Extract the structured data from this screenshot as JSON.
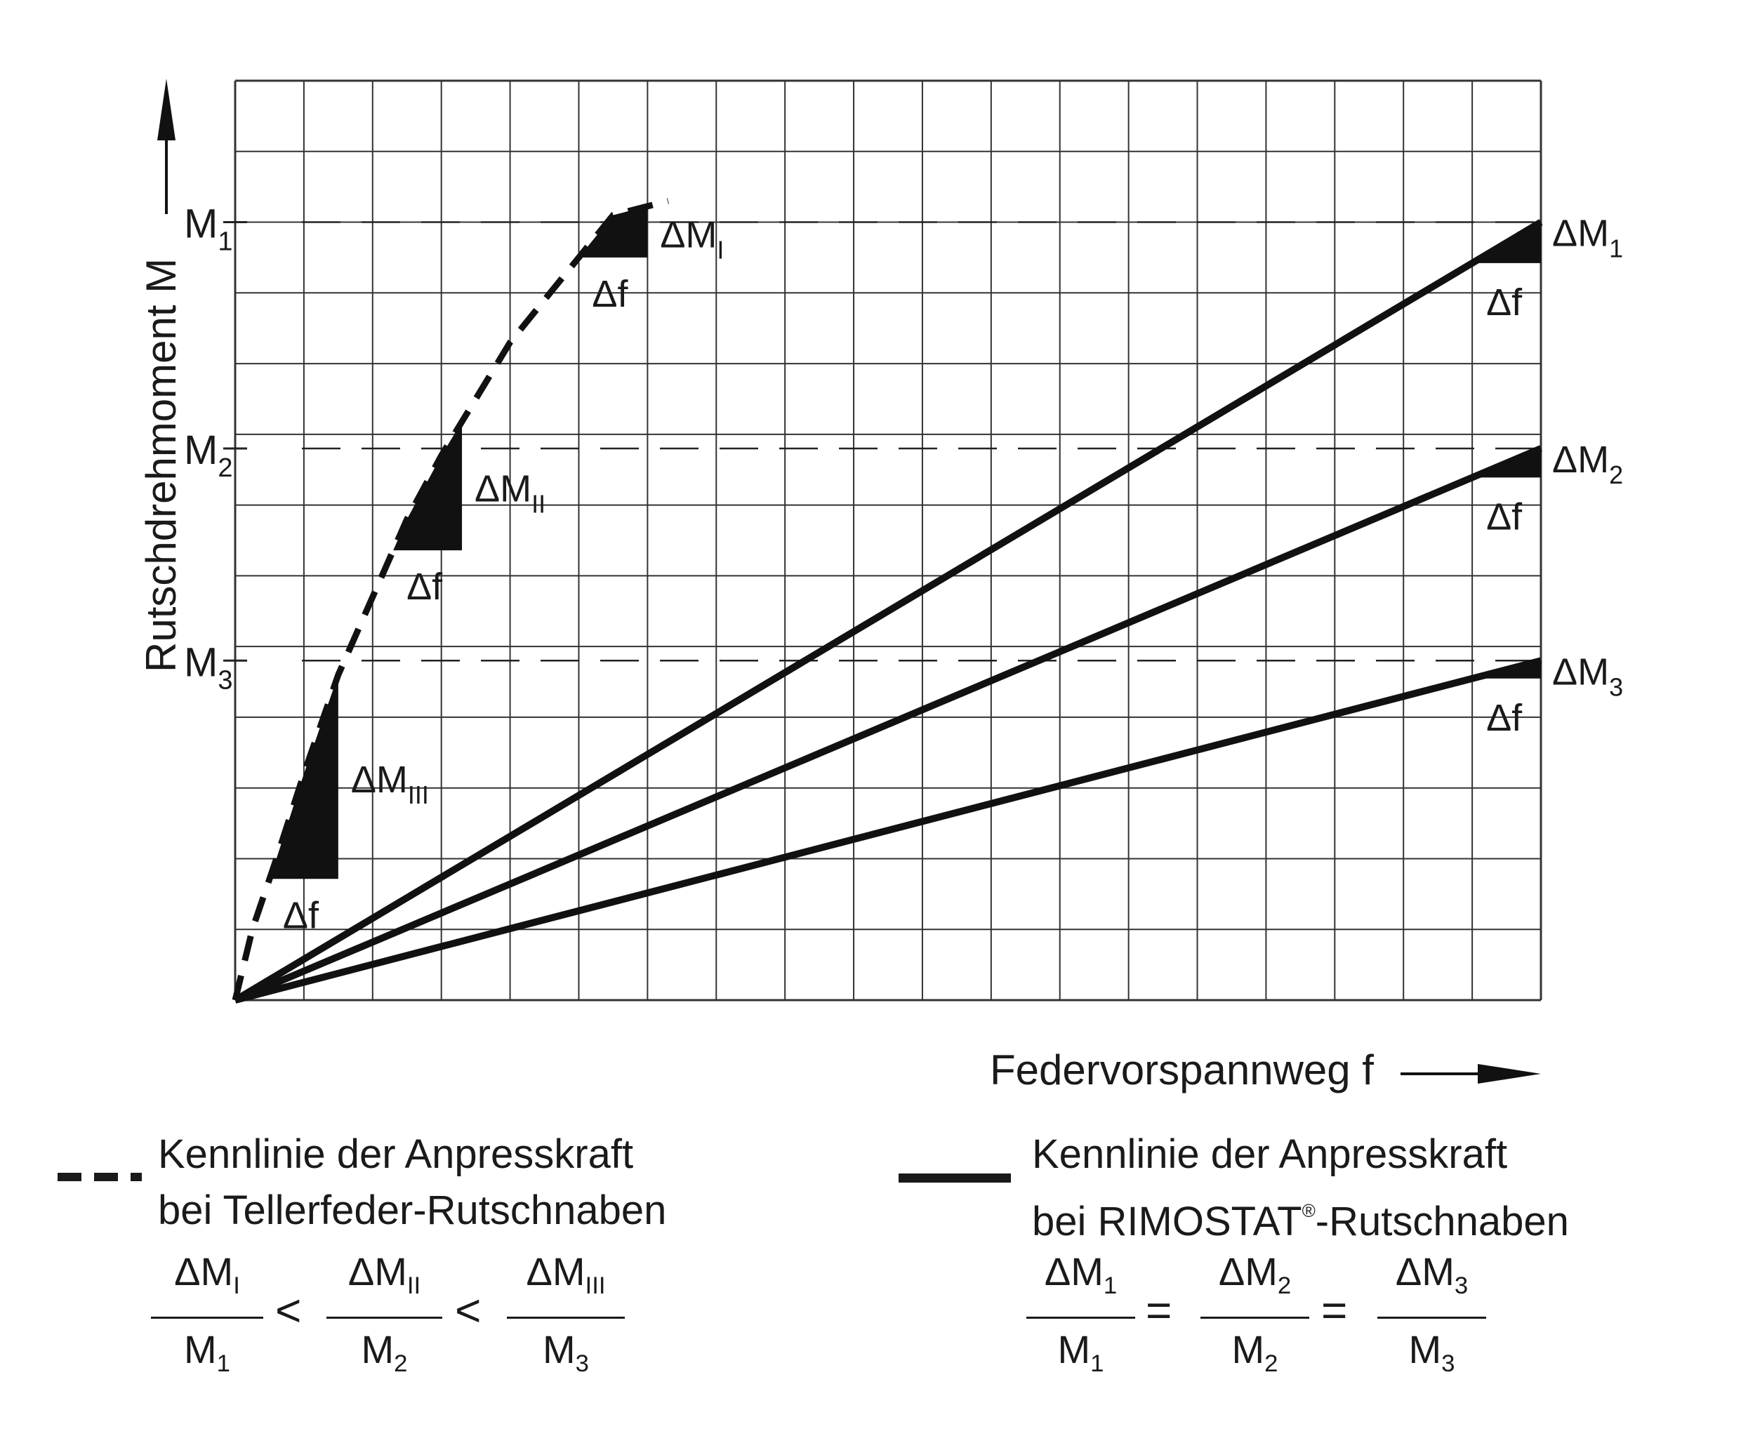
{
  "chart_data": {
    "type": "line",
    "ylabel": "Rutschdrehmoment M",
    "xlabel": "Federvorspannweg f",
    "xlim": [
      0,
      19
    ],
    "ylim": [
      0,
      13
    ],
    "grid": true,
    "y_reference_levels": [
      {
        "label": "M",
        "sub": "1",
        "value": 11
      },
      {
        "label": "M",
        "sub": "2",
        "value": 7.8
      },
      {
        "label": "M",
        "sub": "3",
        "value": 4.8
      }
    ],
    "series": [
      {
        "style": "dashed",
        "points": [
          [
            0,
            0
          ],
          [
            0.25,
            1.0
          ],
          [
            0.6,
            2.0
          ],
          [
            1.0,
            3.2
          ],
          [
            1.5,
            4.6
          ],
          [
            2.0,
            5.7
          ],
          [
            2.5,
            6.8
          ],
          [
            3.0,
            7.7
          ],
          [
            3.5,
            8.5
          ],
          [
            4.0,
            9.3
          ],
          [
            4.5,
            9.9
          ],
          [
            5.0,
            10.5
          ],
          [
            5.5,
            11.1
          ],
          [
            6.3,
            11.3
          ]
        ]
      },
      {
        "style": "solid",
        "points": [
          [
            0,
            0
          ],
          [
            19,
            11
          ]
        ]
      },
      {
        "style": "solid",
        "points": [
          [
            0,
            0
          ],
          [
            19,
            7.8
          ]
        ]
      },
      {
        "style": "solid",
        "points": [
          [
            0,
            0
          ],
          [
            19,
            4.8
          ]
        ]
      }
    ],
    "triangle_annotations": [
      {
        "label": "ΔM",
        "sub": "I",
        "df_label": "Δf"
      },
      {
        "label": "ΔM",
        "sub": "II",
        "df_label": "Δf"
      },
      {
        "label": "ΔM",
        "sub": "III",
        "df_label": "Δf"
      },
      {
        "label": "ΔM",
        "sub": "1",
        "df_label": "Δf"
      },
      {
        "label": "ΔM",
        "sub": "2",
        "df_label": "Δf"
      },
      {
        "label": "ΔM",
        "sub": "3",
        "df_label": "Δf"
      }
    ]
  },
  "legend": {
    "dashed": {
      "line1": "Kennlinie der Anpresskraft",
      "line2": "bei Tellerfeder-Rutschnaben"
    },
    "solid": {
      "line1": "Kennlinie der Anpresskraft",
      "line2_prefix": "bei RIMOSTAT",
      "line2_reg": "®",
      "line2_suffix": "-Rutschnaben"
    }
  },
  "formulas": {
    "left": {
      "fractions": [
        {
          "num": "ΔM",
          "num_sub": "I",
          "den": "M",
          "den_sub": "1"
        },
        {
          "num": "ΔM",
          "num_sub": "II",
          "den": "M",
          "den_sub": "2"
        },
        {
          "num": "ΔM",
          "num_sub": "III",
          "den": "M",
          "den_sub": "3"
        }
      ],
      "operator": "<"
    },
    "right": {
      "fractions": [
        {
          "num": "ΔM",
          "num_sub": "1",
          "den": "M",
          "den_sub": "1"
        },
        {
          "num": "ΔM",
          "num_sub": "2",
          "den": "M",
          "den_sub": "2"
        },
        {
          "num": "ΔM",
          "num_sub": "3",
          "den": "M",
          "den_sub": "3"
        }
      ],
      "operator": "="
    }
  }
}
